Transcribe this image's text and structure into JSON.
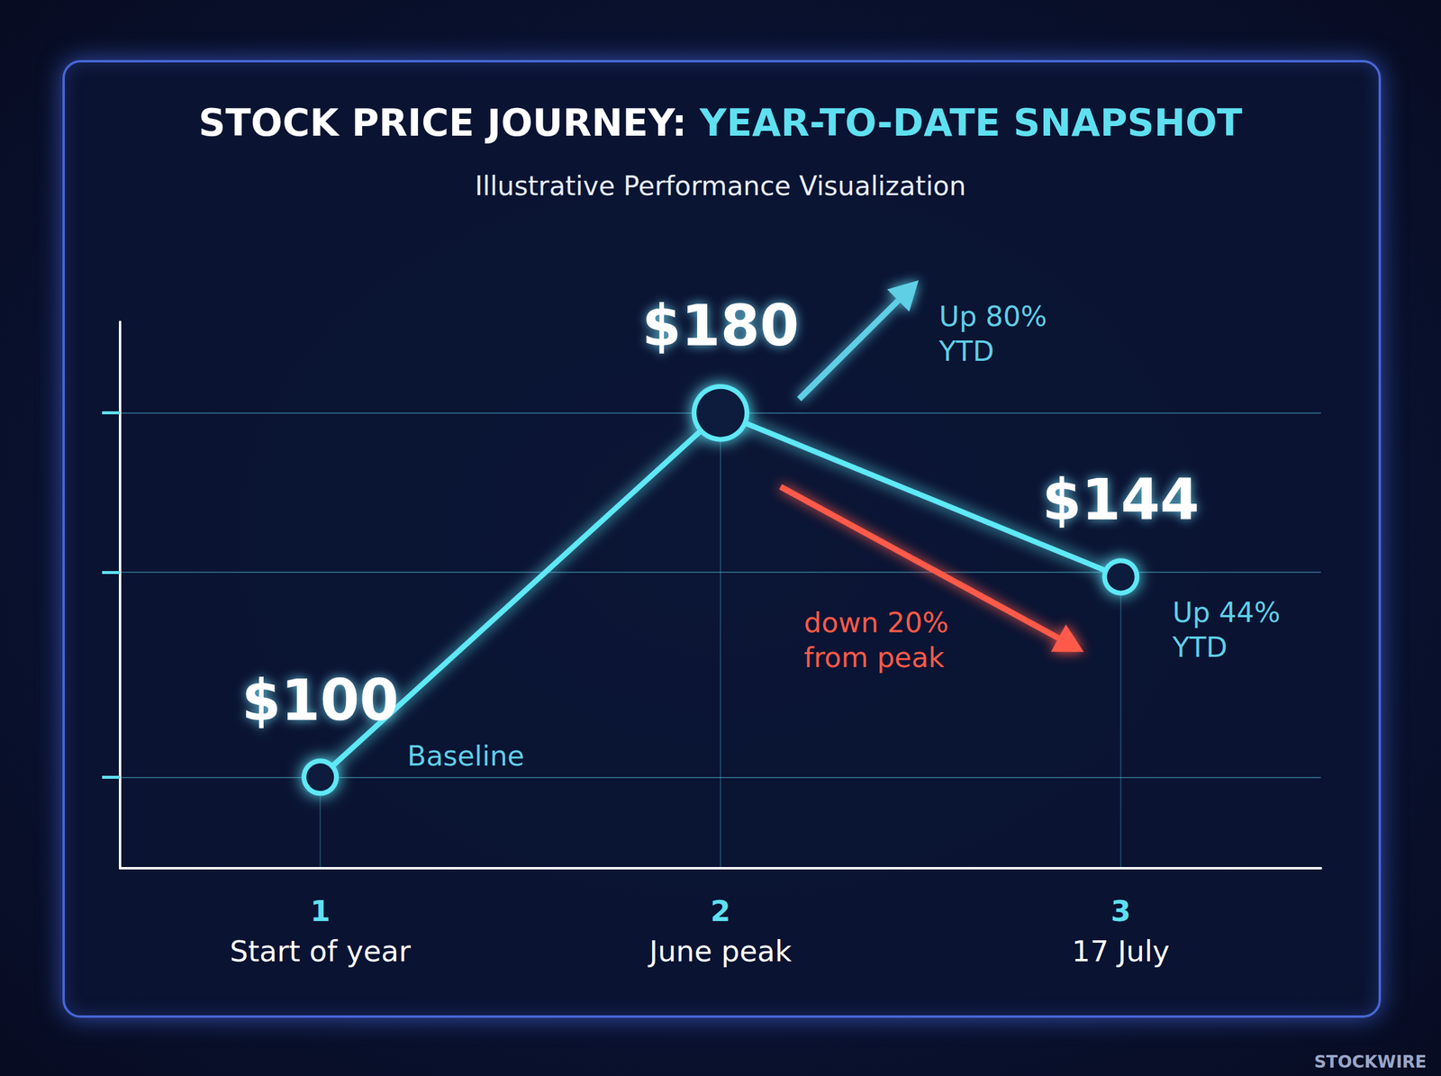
{
  "chart_data": {
    "type": "line",
    "title": "STOCK PRICE JOURNEY: YEAR-TO-DATE SNAPSHOT",
    "subtitle": "Illustrative Performance Visualization",
    "categories": [
      "Start of year",
      "June peak",
      "17 July"
    ],
    "category_numbers": [
      "1",
      "2",
      "3"
    ],
    "values": [
      100,
      180,
      144
    ],
    "value_labels": [
      "$100",
      "$180",
      "$144"
    ],
    "data_labels": true,
    "color": "#5ee8f5",
    "marker": "circle",
    "line_style": "solid",
    "ylim": [
      80,
      200
    ],
    "yticks": [
      100,
      145,
      180
    ],
    "grid": true,
    "tick_labels": "x",
    "annotations": [
      {
        "text": "Up 80% YTD",
        "anchor": "June peak",
        "color": "#5fcfe6"
      },
      {
        "text": "down 20% from peak",
        "anchor": "June peak",
        "color": "#ff5a48"
      },
      {
        "text": "Up 44% YTD",
        "anchor": "17 July",
        "color": "#5fcfe6"
      },
      {
        "text": "Baseline",
        "anchor": "Start of year",
        "color": "#5fcfe6"
      }
    ],
    "source": "STOCKWIRE"
  }
}
